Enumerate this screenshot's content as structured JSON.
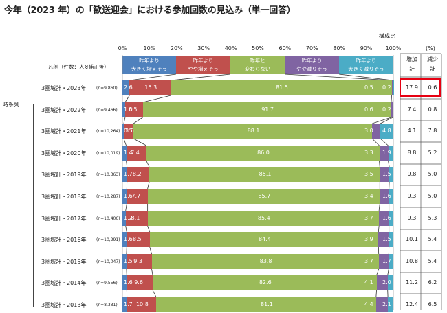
{
  "title": "今年（2023 年）の「歓送迎会」における参加回数の見込み（単一回答）",
  "composition_label": "構成比",
  "percent_unit": "(%)",
  "legend_label": "凡例（件数：人※補正後）",
  "timeseries_label": "時系列",
  "summary_headers": {
    "increase": [
      "増加",
      "計"
    ],
    "decrease": [
      "減少",
      "計"
    ]
  },
  "legend": [
    {
      "lines": [
        "昨年より",
        "大きく増えそう"
      ],
      "color": "#4f81bd"
    },
    {
      "lines": [
        "昨年より",
        "やや増えそう"
      ],
      "color": "#c0504d"
    },
    {
      "lines": [
        "昨年と",
        "変わらない"
      ],
      "color": "#9bbb59"
    },
    {
      "lines": [
        "昨年より",
        "やや減りそう"
      ],
      "color": "#8064a2"
    },
    {
      "lines": [
        "昨年より",
        "大きく減りそう"
      ],
      "color": "#4bacc6"
    }
  ],
  "chart_data": {
    "type": "bar",
    "orientation": "horizontal-stacked-100",
    "xlim": [
      0,
      100
    ],
    "x_ticks": [
      "0%",
      "10%",
      "20%",
      "30%",
      "40%",
      "50%",
      "60%",
      "70%",
      "80%",
      "90%",
      "100%"
    ],
    "series_names": [
      "昨年より大きく増えそう",
      "昨年よりやや増えそう",
      "昨年と変わらない",
      "昨年よりやや減りそう",
      "昨年より大きく減りそう"
    ],
    "rows": [
      {
        "label": "3圏域計・2023年",
        "n": "(n=9,860)",
        "values": [
          2.6,
          15.3,
          81.5,
          0.5,
          0.2
        ],
        "increase": "17.9",
        "decrease": "0.6"
      },
      {
        "label": "3圏域計・2022年",
        "n": "(n=9,466)",
        "values": [
          1.0,
          6.5,
          91.7,
          0.6,
          0.2
        ],
        "increase": "7.4",
        "decrease": "0.8"
      },
      {
        "label": "3圏域計・2021年",
        "n": "(n=10,264)",
        "values": [
          0.5,
          3.6,
          88.1,
          3.0,
          4.8
        ],
        "increase": "4.1",
        "decrease": "7.8"
      },
      {
        "label": "3圏域計・2020年",
        "n": "(n=10,019)",
        "values": [
          1.4,
          7.4,
          86.0,
          3.3,
          1.9
        ],
        "increase": "8.8",
        "decrease": "5.2"
      },
      {
        "label": "3圏域計・2019年",
        "n": "(n=10,363)",
        "values": [
          1.7,
          8.2,
          85.1,
          3.5,
          1.5
        ],
        "increase": "9.8",
        "decrease": "5.0"
      },
      {
        "label": "3圏域計・2018年",
        "n": "(n=10,287)",
        "values": [
          1.6,
          7.7,
          85.7,
          3.4,
          1.6
        ],
        "increase": "9.3",
        "decrease": "5.0"
      },
      {
        "label": "3圏域計・2017年",
        "n": "(n=10,406)",
        "values": [
          1.2,
          8.1,
          85.4,
          3.7,
          1.6
        ],
        "increase": "9.3",
        "decrease": "5.3"
      },
      {
        "label": "3圏域計・2016年",
        "n": "(n=10,291)",
        "values": [
          1.6,
          8.5,
          84.4,
          3.9,
          1.5
        ],
        "increase": "10.1",
        "decrease": "5.4"
      },
      {
        "label": "3圏域計・2015年",
        "n": "(n=10,047)",
        "values": [
          1.5,
          9.3,
          83.8,
          3.7,
          1.7
        ],
        "increase": "10.8",
        "decrease": "5.4"
      },
      {
        "label": "3圏域計・2014年",
        "n": "(n=9,556)",
        "values": [
          1.6,
          9.6,
          82.6,
          4.1,
          2.0
        ],
        "increase": "11.2",
        "decrease": "6.2"
      },
      {
        "label": "3圏域計・2013年",
        "n": "(n=8,331)",
        "values": [
          1.7,
          10.8,
          81.1,
          4.4,
          2.1
        ],
        "increase": "12.4",
        "decrease": "6.5"
      }
    ],
    "highlight": "3圏域計・2023年 増加計・減少計"
  }
}
